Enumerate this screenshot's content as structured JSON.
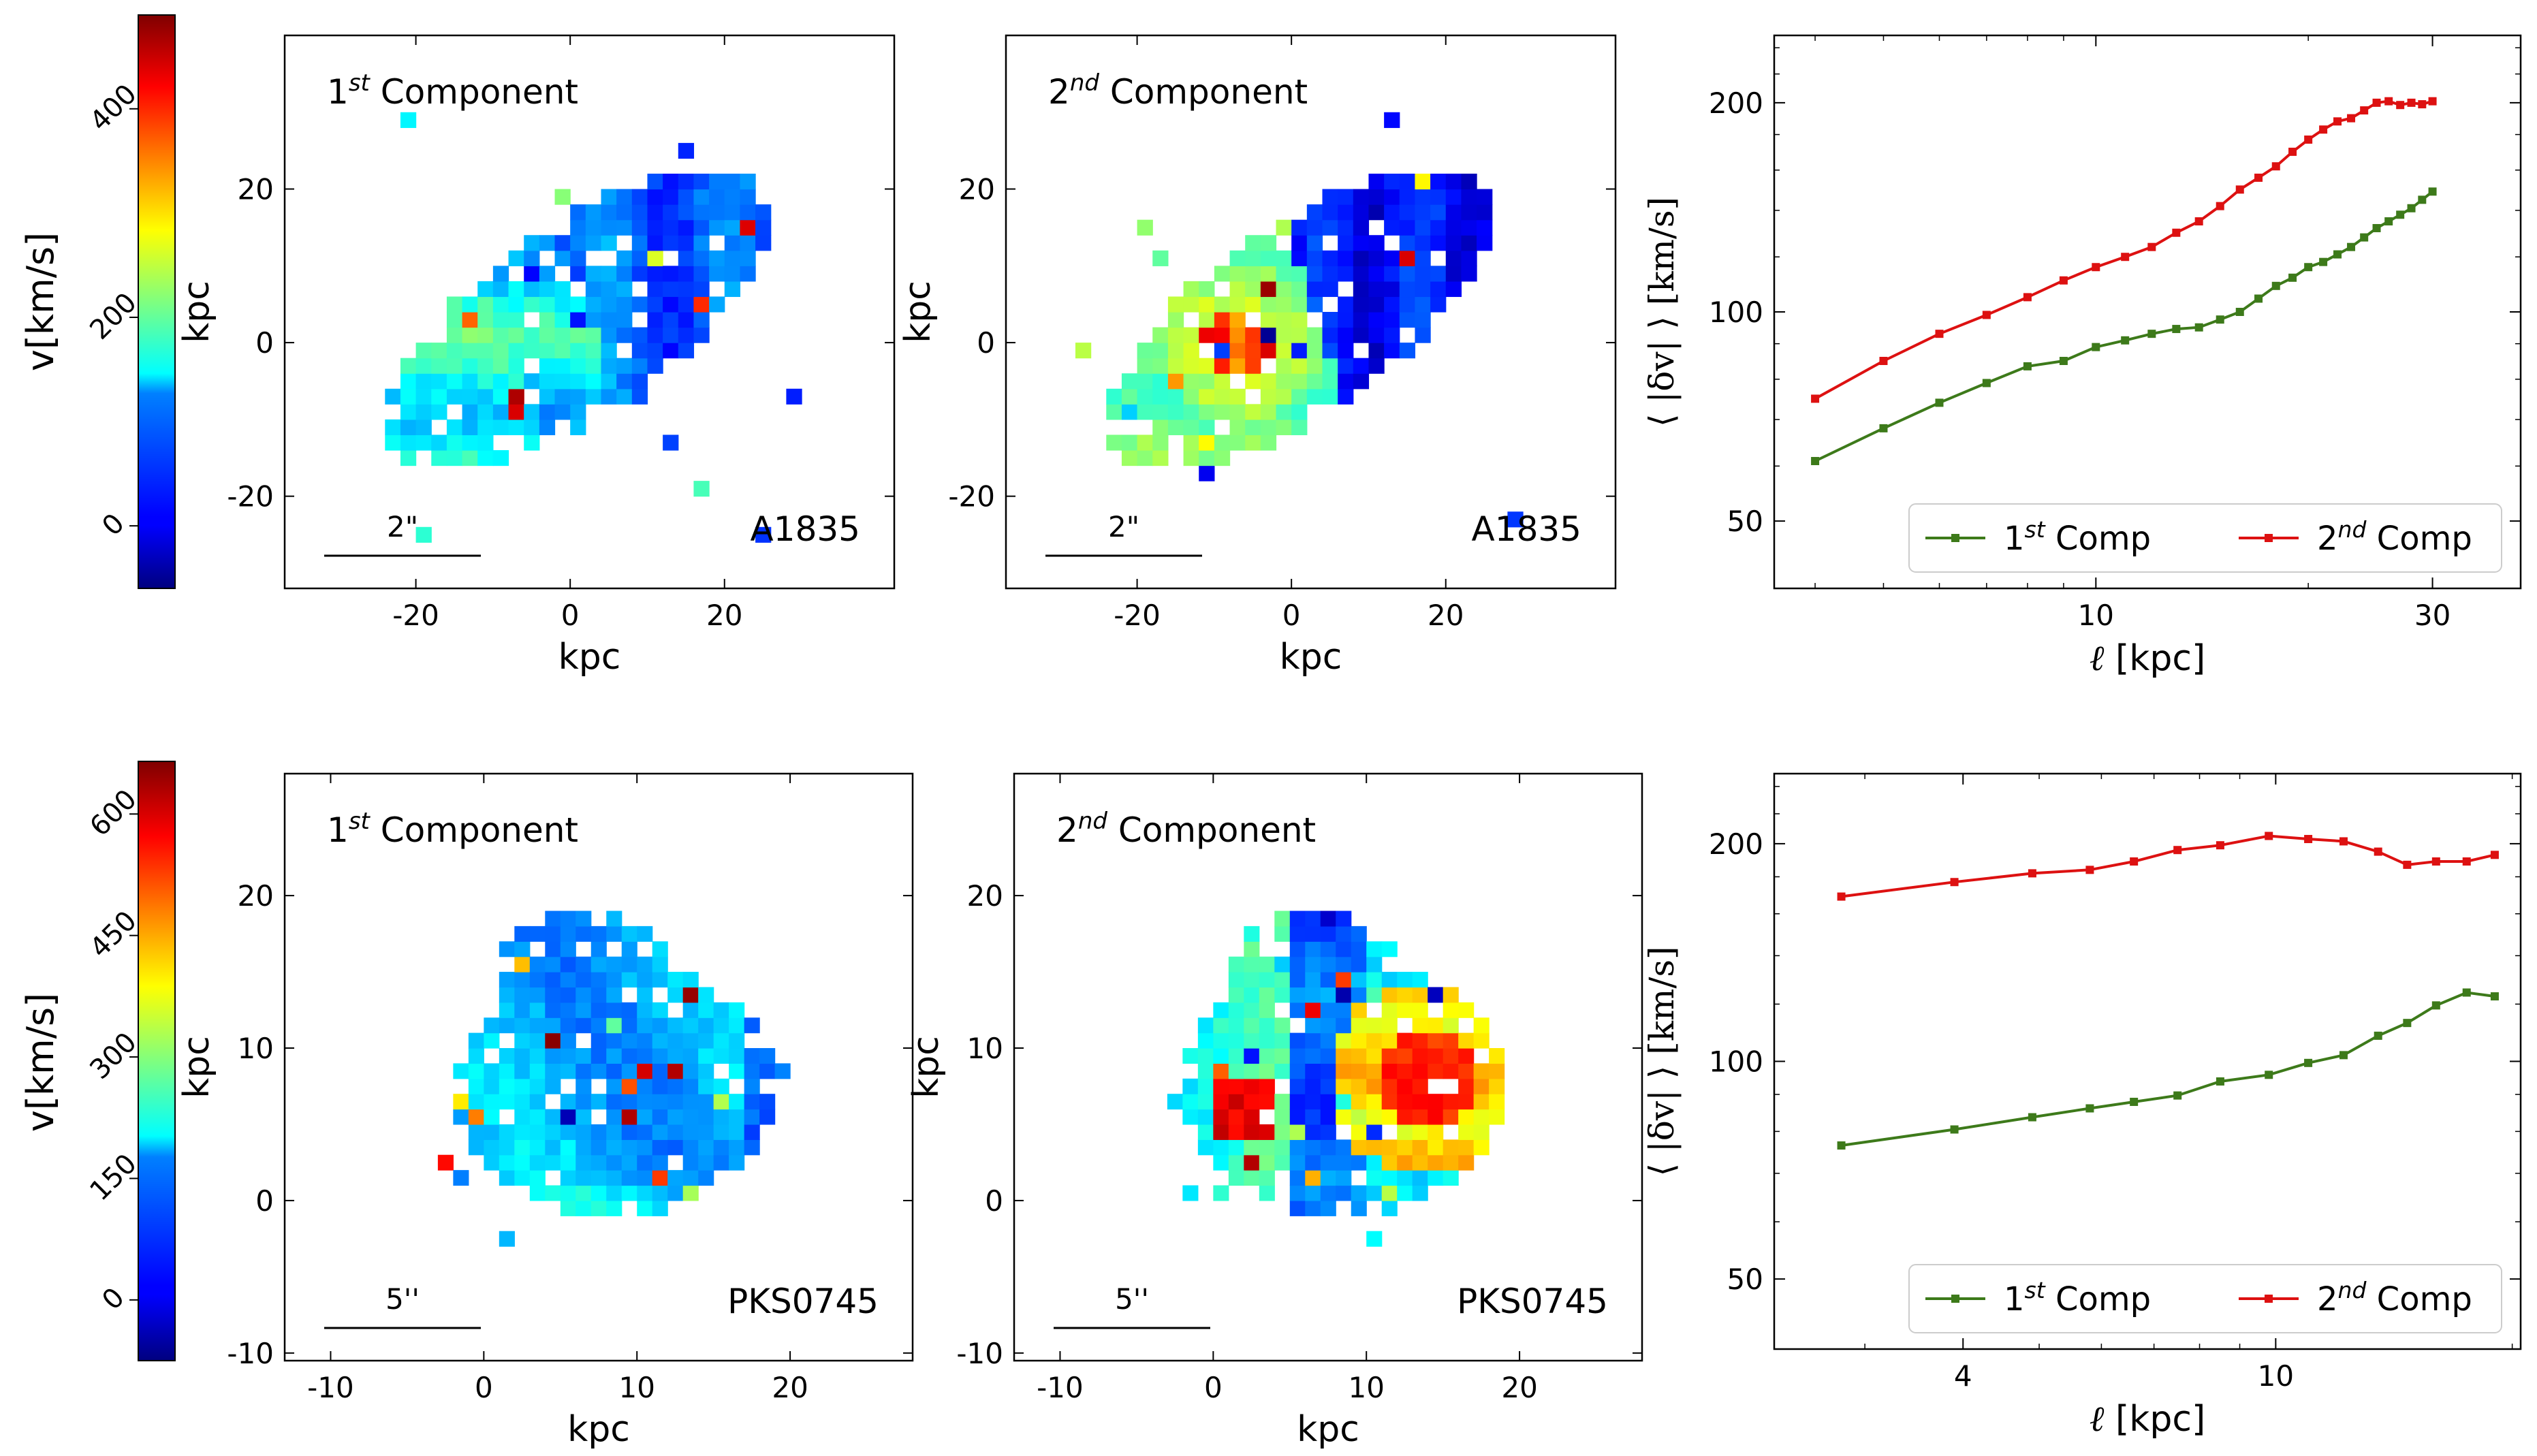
{
  "chart_data": [
    {
      "type": "heatmap",
      "panel": "top-left",
      "title_main": "1",
      "title_sup": "st",
      "title_rest": " Component",
      "galaxy": "A1835",
      "scalebar_label": "2\"",
      "xlabel": "kpc",
      "ylabel": "kpc",
      "xlim": [
        -37,
        42
      ],
      "ylim": [
        -32,
        40
      ],
      "xticks": [
        -20,
        0,
        20
      ],
      "yticks": [
        -20,
        0,
        20
      ],
      "xtick_labels": [
        "-20",
        "0",
        "20"
      ],
      "ytick_labels": [
        "-20",
        "0",
        "20"
      ],
      "cmap_label": "velocity (colorbar A1835)"
    },
    {
      "type": "heatmap",
      "panel": "top-middle",
      "title_main": "2",
      "title_sup": "nd",
      "title_rest": " Component",
      "galaxy": "A1835",
      "scalebar_label": "2\"",
      "xlabel": "kpc",
      "ylabel": "kpc",
      "xlim": [
        -37,
        42
      ],
      "ylim": [
        -32,
        40
      ],
      "xticks": [
        -20,
        0,
        20
      ],
      "yticks": [
        -20,
        0,
        20
      ],
      "xtick_labels": [
        "-20",
        "0",
        "20"
      ],
      "ytick_labels": [
        "-20",
        "0",
        "20"
      ]
    },
    {
      "type": "line",
      "panel": "top-right",
      "xscale": "log",
      "yscale": "log",
      "xlim": [
        3.5,
        40
      ],
      "ylim": [
        40,
        250
      ],
      "xticks": [
        10,
        30
      ],
      "xtick_labels": [
        "10",
        "30"
      ],
      "yticks": [
        50,
        100,
        200
      ],
      "ytick_labels": [
        "50",
        "100",
        "200"
      ],
      "xlabel_sym": "ℓ",
      "xlabel_rest": " [kpc]",
      "ylabel": "⟨ |δv| ⟩ [km/s]",
      "legend_loc": "lower-right",
      "series": [
        {
          "name_main": "1",
          "name_sup": "st",
          "name_rest": " Comp",
          "color": "#3d7a1a",
          "x": [
            4,
            5,
            6,
            7,
            8,
            9,
            10,
            11,
            12,
            13,
            14,
            15,
            16,
            17,
            18,
            19,
            20,
            21,
            22,
            23,
            24,
            25,
            26,
            27,
            28,
            29,
            30
          ],
          "y": [
            61,
            68,
            74,
            79,
            83.5,
            85,
            89,
            91,
            93,
            94.5,
            95,
            97.5,
            100,
            104.5,
            109,
            112,
            116,
            118,
            121,
            124,
            128,
            132,
            135,
            138,
            141,
            145,
            149
          ]
        },
        {
          "name_main": "2",
          "name_sup": "nd",
          "name_rest": " Comp",
          "color": "#dd1111",
          "x": [
            4,
            5,
            6,
            7,
            8,
            9,
            10,
            11,
            12,
            13,
            14,
            15,
            16,
            17,
            18,
            19,
            20,
            21,
            22,
            23,
            24,
            25,
            26,
            27,
            28,
            29,
            30
          ],
          "y": [
            75,
            85,
            93,
            99,
            105,
            111,
            116,
            120,
            124,
            130,
            135,
            142,
            150,
            156,
            162,
            170,
            177,
            183,
            188,
            190,
            195,
            200,
            201,
            198.5,
            200,
            199,
            201
          ]
        }
      ]
    },
    {
      "type": "heatmap",
      "panel": "bottom-left",
      "title_main": "1",
      "title_sup": "st",
      "title_rest": " Component",
      "galaxy": "PKS0745",
      "scalebar_label": "5''",
      "xlabel": "kpc",
      "ylabel": "kpc",
      "xlim": [
        -13,
        28
      ],
      "ylim": [
        -10.5,
        28
      ],
      "xticks": [
        -10,
        0,
        10,
        20
      ],
      "yticks": [
        -10,
        0,
        10,
        20
      ],
      "xtick_labels": [
        "-10",
        "0",
        "10",
        "20"
      ],
      "ytick_labels": [
        "-10",
        "0",
        "10",
        "20"
      ]
    },
    {
      "type": "heatmap",
      "panel": "bottom-middle",
      "title_main": "2",
      "title_sup": "nd",
      "title_rest": " Component",
      "galaxy": "PKS0745",
      "scalebar_label": "5''",
      "xlabel": "kpc",
      "ylabel": "kpc",
      "xlim": [
        -13,
        28
      ],
      "ylim": [
        -10.5,
        28
      ],
      "xticks": [
        -10,
        0,
        10,
        20
      ],
      "yticks": [
        -10,
        0,
        10,
        20
      ],
      "xtick_labels": [
        "-10",
        "0",
        "10",
        "20"
      ],
      "ytick_labels": [
        "-10",
        "0",
        "10",
        "20"
      ]
    },
    {
      "type": "line",
      "panel": "bottom-right",
      "xscale": "log",
      "yscale": "log",
      "xlim": [
        2.3,
        20.5
      ],
      "ylim": [
        40,
        250
      ],
      "xticks": [
        4,
        10
      ],
      "xtick_labels": [
        "4",
        "10"
      ],
      "yticks": [
        50,
        100,
        200
      ],
      "ytick_labels": [
        "50",
        "100",
        "200"
      ],
      "xlabel_sym": "ℓ",
      "xlabel_rest": " [kpc]",
      "ylabel": "⟨ |δv| ⟩ [km/s]",
      "legend_loc": "lower-right",
      "series": [
        {
          "name_main": "1",
          "name_sup": "st",
          "name_rest": " Comp",
          "color": "#3d7a1a",
          "x": [
            2.8,
            3.9,
            4.9,
            5.8,
            6.6,
            7.5,
            8.5,
            9.8,
            11,
            12.2,
            13.5,
            14.7,
            16,
            17.5,
            19
          ],
          "y": [
            76.5,
            80.5,
            83.7,
            86.1,
            87.9,
            89.7,
            93.8,
            95.8,
            99.5,
            102,
            108.5,
            113,
            119.5,
            124.5,
            123
          ]
        },
        {
          "name_main": "2",
          "name_sup": "nd",
          "name_rest": " Comp",
          "color": "#dd1111",
          "x": [
            2.8,
            3.9,
            4.9,
            5.8,
            6.6,
            7.5,
            8.5,
            9.8,
            11,
            12.2,
            13.5,
            14.7,
            16,
            17.5,
            19
          ],
          "y": [
            169,
            177,
            182,
            184,
            189,
            196,
            199,
            205,
            203,
            201.5,
            195,
            187,
            189,
            189,
            193
          ]
        }
      ]
    }
  ],
  "colorbars": [
    {
      "label": "v[km/s]",
      "vmin": -60,
      "vmax": 490,
      "ticks": [
        0,
        200,
        400
      ],
      "tick_labels": [
        "0",
        "200",
        "400"
      ]
    },
    {
      "label": "v[km/s]",
      "vmin": -75,
      "vmax": 665,
      "ticks": [
        0,
        150,
        300,
        450,
        600
      ],
      "tick_labels": [
        "0",
        "150",
        "300",
        "450",
        "600"
      ]
    }
  ]
}
